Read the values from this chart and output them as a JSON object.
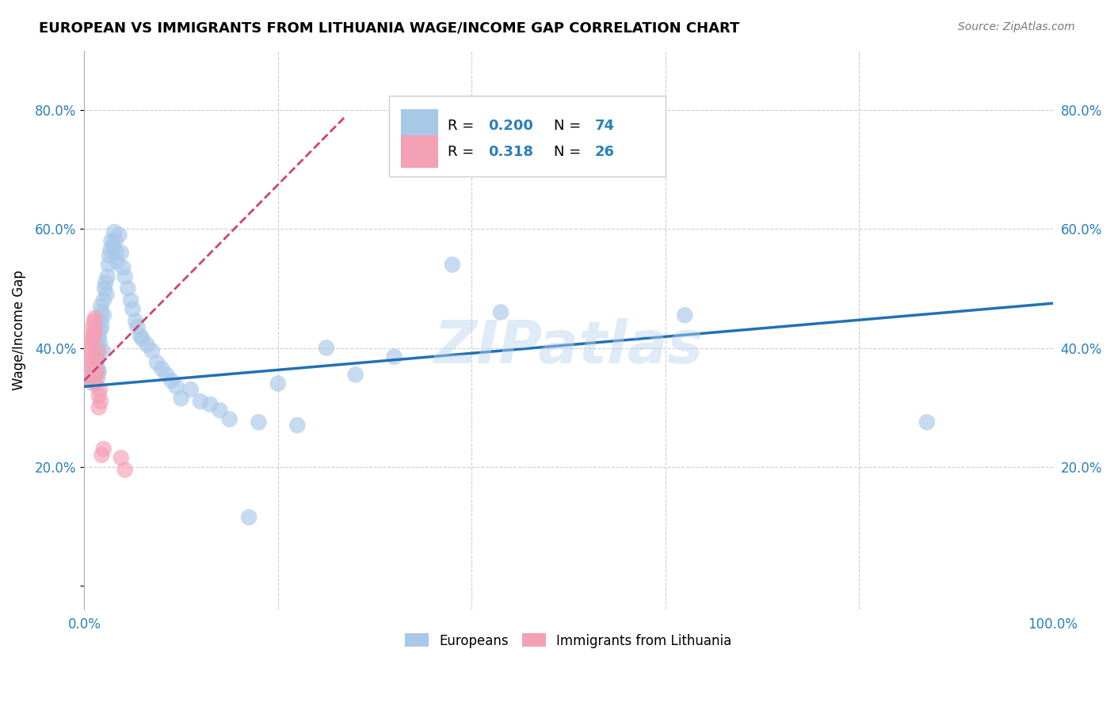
{
  "title": "EUROPEAN VS IMMIGRANTS FROM LITHUANIA WAGE/INCOME GAP CORRELATION CHART",
  "source": "Source: ZipAtlas.com",
  "ylabel": "Wage/Income Gap",
  "watermark": "ZIPatlas",
  "blue_color": "#a8c8e8",
  "pink_color": "#f4a0b5",
  "blue_line_color": "#2171b5",
  "pink_line_color": "#d44070",
  "xlim": [
    0.0,
    1.0
  ],
  "ylim": [
    -0.04,
    0.9
  ],
  "ytick_values": [
    0.0,
    0.2,
    0.4,
    0.6,
    0.8
  ],
  "blue_scatter_x": [
    0.005,
    0.007,
    0.008,
    0.009,
    0.01,
    0.01,
    0.011,
    0.011,
    0.012,
    0.012,
    0.013,
    0.013,
    0.014,
    0.014,
    0.015,
    0.015,
    0.015,
    0.016,
    0.016,
    0.017,
    0.017,
    0.018,
    0.018,
    0.019,
    0.02,
    0.02,
    0.021,
    0.022,
    0.023,
    0.024,
    0.025,
    0.026,
    0.027,
    0.028,
    0.03,
    0.031,
    0.032,
    0.033,
    0.034,
    0.036,
    0.038,
    0.04,
    0.042,
    0.045,
    0.048,
    0.05,
    0.053,
    0.055,
    0.058,
    0.06,
    0.065,
    0.07,
    0.075,
    0.08,
    0.085,
    0.09,
    0.095,
    0.1,
    0.11,
    0.12,
    0.13,
    0.14,
    0.15,
    0.17,
    0.18,
    0.2,
    0.22,
    0.25,
    0.28,
    0.32,
    0.38,
    0.43,
    0.62,
    0.87
  ],
  "blue_scatter_y": [
    0.355,
    0.36,
    0.35,
    0.34,
    0.37,
    0.345,
    0.38,
    0.355,
    0.365,
    0.395,
    0.41,
    0.38,
    0.365,
    0.35,
    0.42,
    0.395,
    0.36,
    0.43,
    0.41,
    0.47,
    0.445,
    0.46,
    0.435,
    0.395,
    0.48,
    0.455,
    0.5,
    0.51,
    0.49,
    0.52,
    0.54,
    0.555,
    0.565,
    0.58,
    0.57,
    0.595,
    0.58,
    0.56,
    0.545,
    0.59,
    0.56,
    0.535,
    0.52,
    0.5,
    0.48,
    0.465,
    0.445,
    0.435,
    0.42,
    0.415,
    0.405,
    0.395,
    0.375,
    0.365,
    0.355,
    0.345,
    0.335,
    0.315,
    0.33,
    0.31,
    0.305,
    0.295,
    0.28,
    0.115,
    0.275,
    0.34,
    0.27,
    0.4,
    0.355,
    0.385,
    0.54,
    0.46,
    0.455,
    0.275
  ],
  "pink_scatter_x": [
    0.004,
    0.005,
    0.006,
    0.007,
    0.007,
    0.008,
    0.008,
    0.009,
    0.009,
    0.01,
    0.01,
    0.011,
    0.011,
    0.012,
    0.012,
    0.013,
    0.013,
    0.014,
    0.015,
    0.015,
    0.016,
    0.017,
    0.018,
    0.02,
    0.038,
    0.042
  ],
  "pink_scatter_y": [
    0.35,
    0.37,
    0.39,
    0.41,
    0.38,
    0.42,
    0.4,
    0.435,
    0.415,
    0.445,
    0.425,
    0.45,
    0.43,
    0.355,
    0.34,
    0.36,
    0.38,
    0.395,
    0.32,
    0.3,
    0.33,
    0.31,
    0.22,
    0.23,
    0.215,
    0.195
  ],
  "blue_trend_x0": 0.0,
  "blue_trend_y0": 0.335,
  "blue_trend_x1": 1.0,
  "blue_trend_y1": 0.475,
  "pink_trend_x0": 0.0,
  "pink_trend_y0": 0.345,
  "pink_trend_x1": 0.27,
  "pink_trend_y1": 0.79
}
